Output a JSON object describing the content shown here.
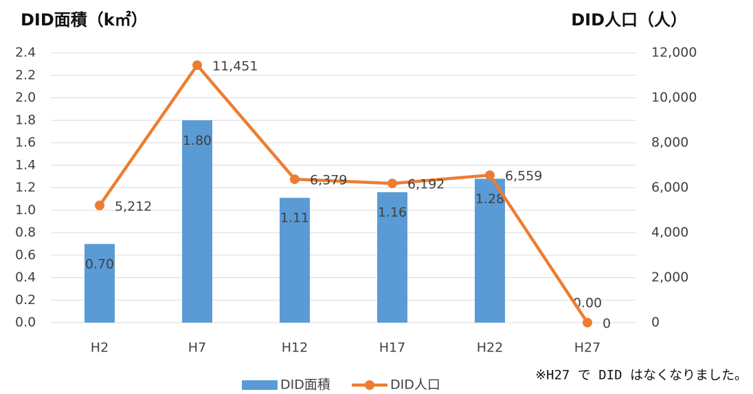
{
  "chart_data": {
    "type": "bar_line",
    "y_axis_label": "DID面積（k㎡）",
    "y2_axis_label": "DID人口（人）",
    "annotation": "※H27 で DID はなくなりました。",
    "categories": [
      "H2",
      "H7",
      "H12",
      "H17",
      "H22",
      "H27"
    ],
    "series": [
      {
        "name": "DID面積",
        "type": "bar",
        "color": "#5b9bd5",
        "axis": "y",
        "values": [
          0.7,
          1.8,
          1.11,
          1.16,
          1.28,
          0
        ],
        "value_labels": [
          "0.70",
          "1.80",
          "1.11",
          "1.16",
          "1.28",
          "0.00"
        ]
      },
      {
        "name": "DID人口",
        "type": "line",
        "color": "#ed7d31",
        "axis": "y2",
        "values": [
          5212,
          11451,
          6379,
          6192,
          6559,
          0
        ],
        "value_labels": [
          "5,212",
          "11,451",
          "6,379",
          "6,192",
          "6,559",
          "0"
        ]
      }
    ],
    "ylim": [
      0,
      2.4
    ],
    "yticks": [
      {
        "value": 0,
        "label": "0.0"
      },
      0.2,
      0.4,
      0.6,
      0.8,
      {
        "value": 1,
        "label": "1.0"
      },
      1.2,
      1.4,
      1.6,
      1.8,
      {
        "value": 2,
        "label": "2.0"
      },
      2.2,
      2.4
    ],
    "y2lim": [
      0,
      12000
    ],
    "y2ticks": [
      0,
      {
        "value": 2000,
        "label": "2,000"
      },
      {
        "value": 4000,
        "label": "4,000"
      },
      {
        "value": 6000,
        "label": "6,000"
      },
      {
        "value": 8000,
        "label": "8,000"
      },
      {
        "value": 10000,
        "label": "10,000"
      },
      {
        "value": 12000,
        "label": "12,000"
      }
    ],
    "grid": true
  }
}
